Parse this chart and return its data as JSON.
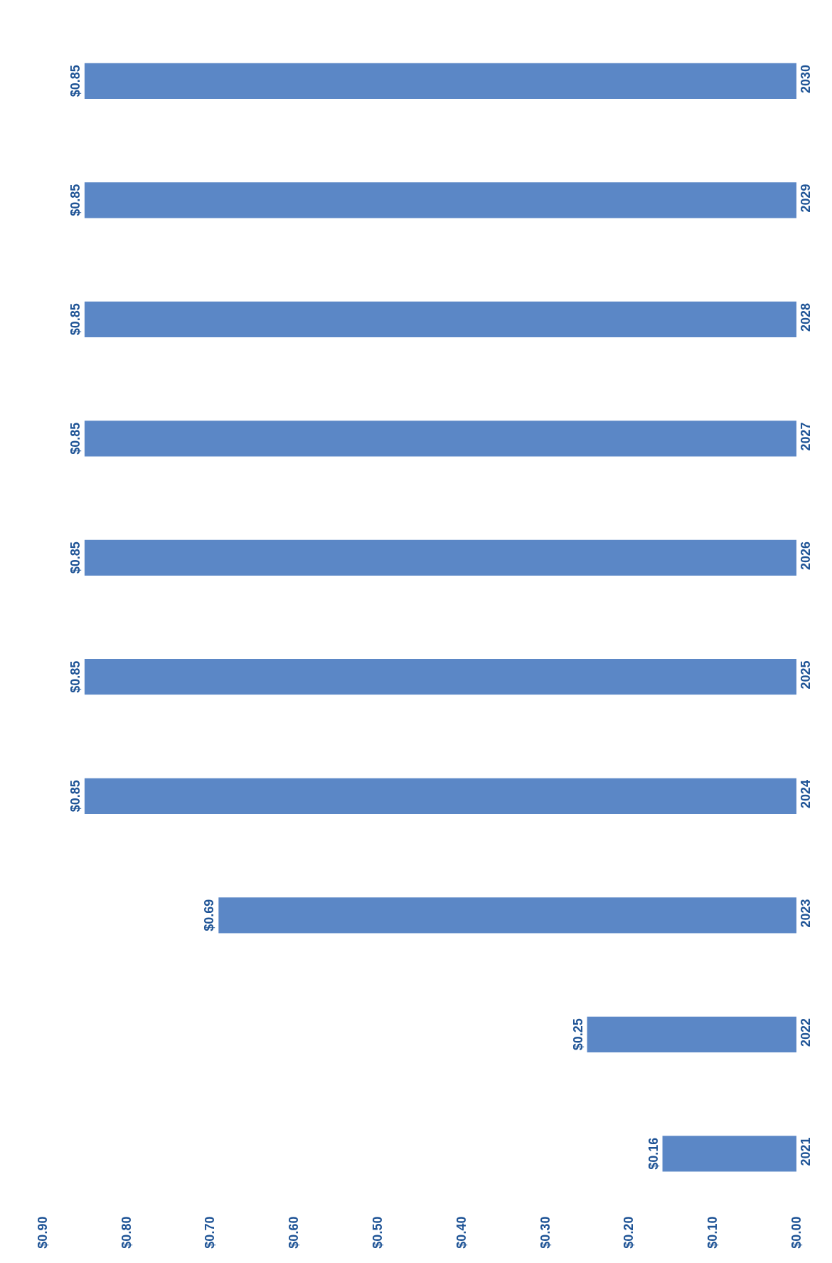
{
  "chart_data": {
    "type": "bar",
    "orientation": "horizontal",
    "categories": [
      "2030",
      "2029",
      "2028",
      "2027",
      "2026",
      "2025",
      "2024",
      "2023",
      "2022",
      "2021"
    ],
    "values": [
      0.85,
      0.85,
      0.85,
      0.85,
      0.85,
      0.85,
      0.85,
      0.69,
      0.25,
      0.16
    ],
    "value_labels": [
      "$0.85",
      "$0.85",
      "$0.85",
      "$0.85",
      "$0.85",
      "$0.85",
      "$0.85",
      "$0.69",
      "$0.25",
      "$0.16"
    ],
    "color": "#5b87c6",
    "xlim": [
      0.9,
      0
    ],
    "xticks": [
      {
        "value": 0.9,
        "label": "$0.90"
      },
      {
        "value": 0.8,
        "label": "$0.80"
      },
      {
        "value": 0.7,
        "label": "$0.70"
      },
      {
        "value": 0.6,
        "label": "$0.60"
      },
      {
        "value": 0.5,
        "label": "$0.50"
      },
      {
        "value": 0.4,
        "label": "$0.40"
      },
      {
        "value": 0.3,
        "label": "$0.30"
      },
      {
        "value": 0.2,
        "label": "$0.20"
      },
      {
        "value": 0.1,
        "label": "$0.10"
      },
      {
        "value": 0,
        "label": "$0.00"
      }
    ],
    "grid": false
  }
}
